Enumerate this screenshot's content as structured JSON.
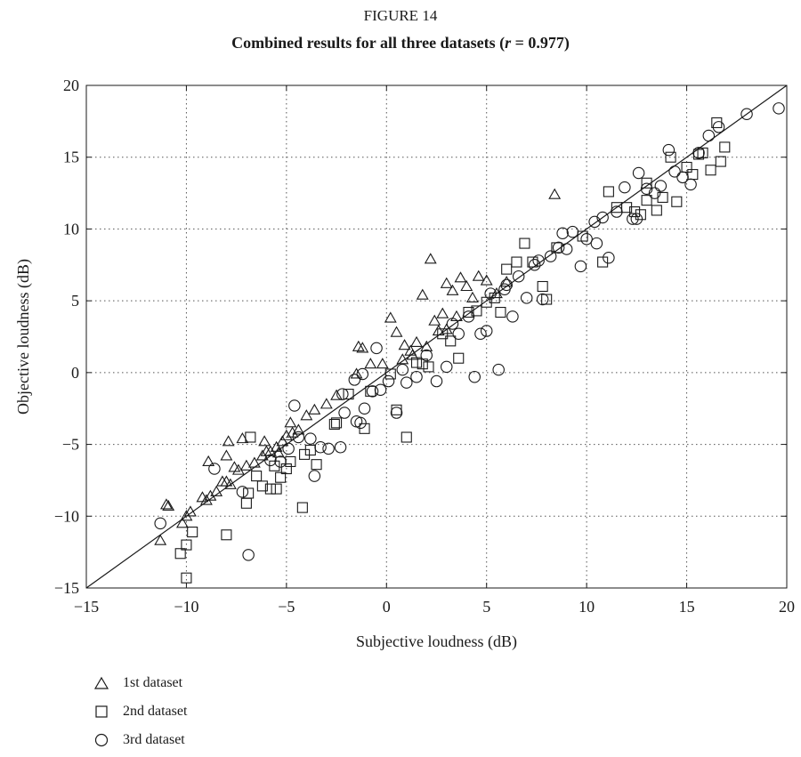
{
  "figure_label": "FIGURE 14",
  "title_prefix": "Combined results for all three datasets (",
  "title_var": "r",
  "title_suffix": " = 0.977)",
  "chart_data": {
    "type": "scatter",
    "title": "Combined results for all three datasets (r = 0.977)",
    "xlabel": "Subjective loudness (dB)",
    "ylabel": "Objective loudness (dB)",
    "xlim": [
      -15,
      20
    ],
    "ylim": [
      -15,
      20
    ],
    "xticks": [
      -15,
      -10,
      -5,
      0,
      5,
      10,
      15,
      20
    ],
    "yticks": [
      -15,
      -10,
      -5,
      0,
      5,
      10,
      15,
      20
    ],
    "xtick_labels": [
      "−15",
      "−10",
      "−5",
      "0",
      "5",
      "10",
      "15",
      "20"
    ],
    "ytick_labels": [
      "−15",
      "−10",
      "−5",
      "0",
      "5",
      "10",
      "15",
      "20"
    ],
    "grid": true,
    "grid_style": "dotted",
    "reference_line": {
      "from": [
        -15,
        -15
      ],
      "to": [
        20,
        20
      ]
    },
    "legend_position": "below-left",
    "series": [
      {
        "name": "1st dataset",
        "marker": "triangle",
        "points": [
          [
            -11,
            -9.2
          ],
          [
            -11.3,
            -11.7
          ],
          [
            -10,
            -10
          ],
          [
            -10.2,
            -10.5
          ],
          [
            -9,
            -8.9
          ],
          [
            -8.8,
            -8.6
          ],
          [
            -8.5,
            -8.3
          ],
          [
            -8.2,
            -7.6
          ],
          [
            -8,
            -7.6
          ],
          [
            -7.8,
            -7.8
          ],
          [
            -7.6,
            -6.6
          ],
          [
            -7.4,
            -6.8
          ],
          [
            -7,
            -6.5
          ],
          [
            -6.6,
            -6.3
          ],
          [
            -6.2,
            -5.8
          ],
          [
            -5.8,
            -5.5
          ],
          [
            -5.5,
            -5.2
          ],
          [
            -5.2,
            -4.8
          ],
          [
            -5,
            -4.4
          ],
          [
            -4.7,
            -4.2
          ],
          [
            -4.4,
            -4
          ],
          [
            -8.9,
            -6.2
          ],
          [
            -8,
            -5.8
          ],
          [
            -7.9,
            -4.8
          ],
          [
            -7.2,
            -4.6
          ],
          [
            -6.1,
            -4.8
          ],
          [
            -4.8,
            -3.5
          ],
          [
            -4,
            -3
          ],
          [
            -3.6,
            -2.6
          ],
          [
            -2.5,
            -1.6
          ],
          [
            -1.4,
            1.8
          ],
          [
            -1.2,
            1.7
          ],
          [
            -1.5,
            -0.1
          ],
          [
            -0.8,
            0.6
          ],
          [
            -0.2,
            0.6
          ],
          [
            0.2,
            3.8
          ],
          [
            0.5,
            2.8
          ],
          [
            0.9,
            1.9
          ],
          [
            1.3,
            1.2
          ],
          [
            1.5,
            2.1
          ],
          [
            1.8,
            5.4
          ],
          [
            2.2,
            7.9
          ],
          [
            2.4,
            3.6
          ],
          [
            2.8,
            4.1
          ],
          [
            3,
            6.2
          ],
          [
            3.3,
            5.7
          ],
          [
            3.7,
            6.6
          ],
          [
            4,
            6
          ],
          [
            4.3,
            5.2
          ],
          [
            4.6,
            6.7
          ],
          [
            5,
            6.4
          ],
          [
            5.5,
            5.5
          ],
          [
            6,
            6.3
          ],
          [
            3,
            3
          ],
          [
            2.6,
            2.9
          ],
          [
            2,
            1.8
          ],
          [
            8.4,
            12.4
          ],
          [
            -10.9,
            -9.3
          ],
          [
            -9.8,
            -9.7
          ],
          [
            -9.2,
            -8.7
          ],
          [
            -6,
            -5.5
          ],
          [
            -5.4,
            -5.6
          ],
          [
            -3,
            -2.2
          ],
          [
            0.8,
            0.9
          ],
          [
            1.2,
            1.5
          ],
          [
            3.5,
            3.9
          ]
        ]
      },
      {
        "name": "2nd dataset",
        "marker": "square",
        "points": [
          [
            -10,
            -14.3
          ],
          [
            -10.3,
            -12.6
          ],
          [
            -10,
            -12
          ],
          [
            -9.7,
            -11.1
          ],
          [
            -8,
            -11.3
          ],
          [
            -7,
            -9.1
          ],
          [
            -6.9,
            -8.4
          ],
          [
            -6.5,
            -7.2
          ],
          [
            -6.2,
            -7.9
          ],
          [
            -5.8,
            -8.1
          ],
          [
            -5.5,
            -8.1
          ],
          [
            -5.3,
            -7.3
          ],
          [
            -5,
            -6.7
          ],
          [
            -4.8,
            -6.2
          ],
          [
            -4.2,
            -9.4
          ],
          [
            -4.1,
            -5.7
          ],
          [
            -3.8,
            -5.4
          ],
          [
            -3.5,
            -6.4
          ],
          [
            -2.5,
            -3.5
          ],
          [
            -2.6,
            -3.6
          ],
          [
            -1.9,
            -1.5
          ],
          [
            -1.1,
            -3.9
          ],
          [
            -0.8,
            -1.3
          ],
          [
            0.2,
            -0.1
          ],
          [
            0.5,
            -2.6
          ],
          [
            1,
            -4.5
          ],
          [
            1.5,
            0.7
          ],
          [
            1.8,
            0.6
          ],
          [
            2.1,
            0.4
          ],
          [
            2.8,
            2.7
          ],
          [
            3.2,
            2.2
          ],
          [
            3.6,
            1
          ],
          [
            4.1,
            4.2
          ],
          [
            4.5,
            4.3
          ],
          [
            5,
            4.9
          ],
          [
            5.4,
            5.2
          ],
          [
            5.7,
            4.2
          ],
          [
            6,
            7.2
          ],
          [
            6.5,
            7.7
          ],
          [
            6.9,
            9
          ],
          [
            7.3,
            7.7
          ],
          [
            7.8,
            6
          ],
          [
            8,
            5.1
          ],
          [
            8.5,
            8.7
          ],
          [
            9.8,
            9.5
          ],
          [
            10.8,
            7.7
          ],
          [
            11.1,
            12.6
          ],
          [
            11.5,
            11.5
          ],
          [
            12,
            11.5
          ],
          [
            12.4,
            11.2
          ],
          [
            12.7,
            11
          ],
          [
            13,
            12
          ],
          [
            13.5,
            11.3
          ],
          [
            13.8,
            12.2
          ],
          [
            14.2,
            15
          ],
          [
            14.5,
            11.9
          ],
          [
            15,
            14.3
          ],
          [
            15.3,
            13.8
          ],
          [
            15.6,
            15.2
          ],
          [
            16.2,
            14.1
          ],
          [
            16.5,
            17.4
          ],
          [
            16.7,
            14.7
          ],
          [
            16.9,
            15.7
          ],
          [
            15.8,
            15.3
          ],
          [
            13,
            13.2
          ],
          [
            -6.8,
            -4.5
          ],
          [
            -5.6,
            -6.5
          ]
        ]
      },
      {
        "name": "3rd dataset",
        "marker": "circle",
        "points": [
          [
            -11.3,
            -10.5
          ],
          [
            -8.6,
            -6.7
          ],
          [
            -7.2,
            -8.3
          ],
          [
            -6.9,
            -12.7
          ],
          [
            -5.8,
            -6.1
          ],
          [
            -5.3,
            -6.2
          ],
          [
            -4.9,
            -5.3
          ],
          [
            -4.6,
            -2.3
          ],
          [
            -4.4,
            -4.5
          ],
          [
            -3.8,
            -4.6
          ],
          [
            -3.6,
            -7.2
          ],
          [
            -3.3,
            -5.2
          ],
          [
            -2.9,
            -5.3
          ],
          [
            -2.3,
            -5.2
          ],
          [
            -2.1,
            -2.8
          ],
          [
            -1.6,
            -0.5
          ],
          [
            -1.3,
            -3.5
          ],
          [
            -1.1,
            -2.5
          ],
          [
            -1.2,
            -0.1
          ],
          [
            -0.7,
            -1.3
          ],
          [
            -0.3,
            -1.2
          ],
          [
            0.1,
            -0.6
          ],
          [
            0.5,
            -2.8
          ],
          [
            1,
            -0.7
          ],
          [
            1.5,
            -0.3
          ],
          [
            2,
            1.2
          ],
          [
            2.5,
            -0.6
          ],
          [
            3,
            0.4
          ],
          [
            3.6,
            2.7
          ],
          [
            4.1,
            3.9
          ],
          [
            4.4,
            -0.3
          ],
          [
            4.7,
            2.7
          ],
          [
            5.2,
            5.5
          ],
          [
            5.6,
            0.2
          ],
          [
            6,
            6.1
          ],
          [
            6.3,
            3.9
          ],
          [
            6.6,
            6.7
          ],
          [
            7,
            5.2
          ],
          [
            7.4,
            7.5
          ],
          [
            7.8,
            5.1
          ],
          [
            8.2,
            8.1
          ],
          [
            8.6,
            8.7
          ],
          [
            9,
            8.6
          ],
          [
            9.3,
            9.8
          ],
          [
            9.7,
            7.4
          ],
          [
            10,
            9.3
          ],
          [
            10.4,
            10.5
          ],
          [
            10.8,
            10.8
          ],
          [
            11.1,
            8
          ],
          [
            11.5,
            11.2
          ],
          [
            11.9,
            12.9
          ],
          [
            12.3,
            10.7
          ],
          [
            12.6,
            13.9
          ],
          [
            13,
            12.8
          ],
          [
            13.4,
            12.5
          ],
          [
            13.7,
            13
          ],
          [
            14.1,
            15.5
          ],
          [
            14.4,
            14
          ],
          [
            14.8,
            13.6
          ],
          [
            15.2,
            13.1
          ],
          [
            15.6,
            15.3
          ],
          [
            16.1,
            16.5
          ],
          [
            16.6,
            17.1
          ],
          [
            18,
            18
          ],
          [
            19.6,
            18.4
          ],
          [
            12.5,
            10.7
          ],
          [
            10.5,
            9
          ],
          [
            8.8,
            9.7
          ],
          [
            7.6,
            7.8
          ],
          [
            5.9,
            5.8
          ],
          [
            5,
            2.9
          ],
          [
            3.3,
            3.4
          ],
          [
            -2.2,
            -1.5
          ],
          [
            -0.5,
            1.7
          ],
          [
            0.8,
            0.2
          ],
          [
            -1.5,
            -3.4
          ]
        ]
      }
    ]
  }
}
